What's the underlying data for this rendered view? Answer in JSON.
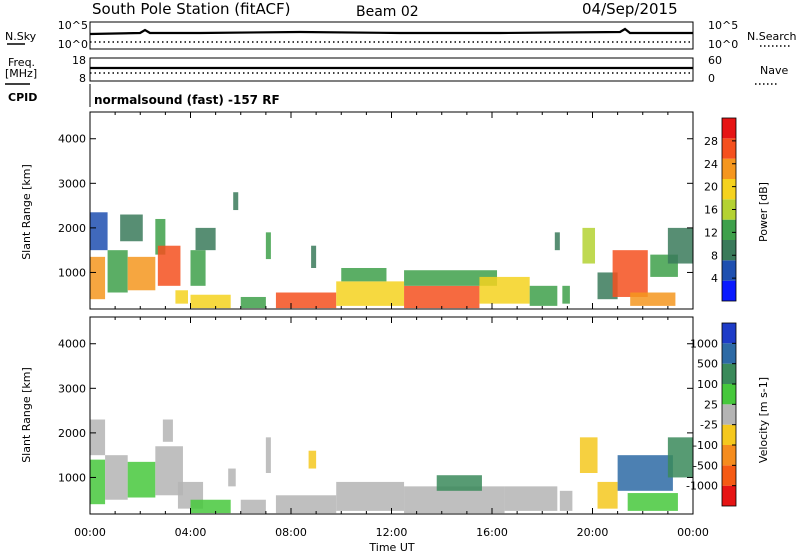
{
  "header": {
    "title": "South Pole Station (fitACF)",
    "beam": "Beam 02",
    "date": "04/Sep/2015"
  },
  "aux_panels": {
    "nsky_label": "N.Sky",
    "nsky_ticks": [
      "10^5",
      "10^0"
    ],
    "nsearch_label": "N.Search",
    "freq_label_top": "Freq.",
    "freq_label_unit": "[MHz]",
    "freq_ticks": [
      "18",
      "8"
    ],
    "nave_ticks": [
      "60",
      "0"
    ],
    "nave_label": "Nave",
    "cpid_label": "CPID",
    "cpid_text": "normalsound (fast) -157 RF"
  },
  "chart_data": [
    {
      "type": "heatmap",
      "name": "power-panel",
      "ylabel": "Slant Range [km]",
      "xlabel": "",
      "yticks": [
        "1000",
        "2000",
        "3000",
        "4000"
      ],
      "ylim": [
        180,
        4600
      ],
      "xlim": [
        0,
        24
      ],
      "colorbar": {
        "label": "Power [dB]",
        "ticks": [
          "28",
          "24",
          "20",
          "16",
          "12",
          "8",
          "4"
        ],
        "range": [
          0,
          32
        ],
        "colors": [
          "#0a1aff",
          "#1e4fb0",
          "#3a7a5a",
          "#3ea04a",
          "#b4d232",
          "#f5d21e",
          "#f5961e",
          "#f5501e",
          "#e61414"
        ]
      },
      "blocks": [
        {
          "t0": 0.0,
          "t1": 0.6,
          "r0": 400,
          "r1": 1350,
          "v": 22
        },
        {
          "t0": 0.0,
          "t1": 0.7,
          "r0": 1500,
          "r1": 2350,
          "v": 6
        },
        {
          "t0": 0.7,
          "t1": 1.5,
          "r0": 550,
          "r1": 1500,
          "v": 14
        },
        {
          "t0": 1.2,
          "t1": 2.1,
          "r0": 1700,
          "r1": 2300,
          "v": 8
        },
        {
          "t0": 1.5,
          "t1": 2.6,
          "r0": 600,
          "r1": 1350,
          "v": 24
        },
        {
          "t0": 2.6,
          "t1": 3.0,
          "r0": 1400,
          "r1": 2200,
          "v": 12
        },
        {
          "t0": 2.7,
          "t1": 3.6,
          "r0": 700,
          "r1": 1600,
          "v": 26
        },
        {
          "t0": 3.4,
          "t1": 3.9,
          "r0": 300,
          "r1": 600,
          "v": 18
        },
        {
          "t0": 4.0,
          "t1": 4.6,
          "r0": 700,
          "r1": 1500,
          "v": 12
        },
        {
          "t0": 4.2,
          "t1": 5.0,
          "r0": 1500,
          "r1": 2000,
          "v": 8
        },
        {
          "t0": 4.0,
          "t1": 5.6,
          "r0": 200,
          "r1": 500,
          "v": 20
        },
        {
          "t0": 5.7,
          "t1": 5.9,
          "r0": 2400,
          "r1": 2800,
          "v": 10
        },
        {
          "t0": 6.0,
          "t1": 7.0,
          "r0": 200,
          "r1": 450,
          "v": 14
        },
        {
          "t0": 7.0,
          "t1": 7.2,
          "r0": 1300,
          "r1": 1900,
          "v": 12
        },
        {
          "t0": 7.4,
          "t1": 9.8,
          "r0": 200,
          "r1": 550,
          "v": 28
        },
        {
          "t0": 8.8,
          "t1": 9.0,
          "r0": 1100,
          "r1": 1600,
          "v": 10
        },
        {
          "t0": 9.8,
          "t1": 12.5,
          "r0": 250,
          "r1": 800,
          "v": 18
        },
        {
          "t0": 10.0,
          "t1": 11.8,
          "r0": 800,
          "r1": 1100,
          "v": 12
        },
        {
          "t0": 12.5,
          "t1": 15.5,
          "r0": 200,
          "r1": 700,
          "v": 26
        },
        {
          "t0": 12.5,
          "t1": 16.2,
          "r0": 700,
          "r1": 1050,
          "v": 14
        },
        {
          "t0": 15.5,
          "t1": 17.5,
          "r0": 300,
          "r1": 900,
          "v": 20
        },
        {
          "t0": 17.5,
          "t1": 18.6,
          "r0": 250,
          "r1": 700,
          "v": 12
        },
        {
          "t0": 18.5,
          "t1": 18.7,
          "r0": 1500,
          "r1": 1900,
          "v": 10
        },
        {
          "t0": 18.8,
          "t1": 19.1,
          "r0": 300,
          "r1": 700,
          "v": 14
        },
        {
          "t0": 19.6,
          "t1": 20.1,
          "r0": 1200,
          "r1": 2000,
          "v": 16
        },
        {
          "t0": 20.2,
          "t1": 21.0,
          "r0": 400,
          "r1": 1000,
          "v": 8
        },
        {
          "t0": 20.8,
          "t1": 22.2,
          "r0": 450,
          "r1": 1500,
          "v": 28
        },
        {
          "t0": 21.5,
          "t1": 23.3,
          "r0": 250,
          "r1": 550,
          "v": 24
        },
        {
          "t0": 22.3,
          "t1": 23.4,
          "r0": 900,
          "r1": 1400,
          "v": 14
        },
        {
          "t0": 23.0,
          "t1": 24.0,
          "r0": 1200,
          "r1": 2000,
          "v": 8
        }
      ]
    },
    {
      "type": "heatmap",
      "name": "velocity-panel",
      "ylabel": "Slant Range [km]",
      "xlabel": "Time UT",
      "yticks": [
        "1000",
        "2000",
        "3000",
        "4000"
      ],
      "ylim": [
        180,
        4600
      ],
      "xlim": [
        0,
        24
      ],
      "xticks": [
        "00:00",
        "04:00",
        "08:00",
        "12:00",
        "16:00",
        "20:00",
        "00:00"
      ],
      "colorbar": {
        "label": "Velocity [m s-1]",
        "ticks": [
          "1000",
          "500",
          "100",
          "25",
          "-25",
          "-100",
          "-500",
          "-1000"
        ],
        "range": [
          -1200,
          1200
        ],
        "colors": [
          "#e61414",
          "#f55a14",
          "#f58c1e",
          "#f5c81e",
          "#b4b4b4",
          "#46c83c",
          "#3a8a5a",
          "#2d6aa5",
          "#1e3cc8"
        ]
      },
      "blocks": [
        {
          "t0": 0.0,
          "t1": 0.6,
          "r0": 400,
          "r1": 1400,
          "v": 150
        },
        {
          "t0": 0.0,
          "t1": 0.6,
          "r0": 1500,
          "r1": 2300,
          "v": -20
        },
        {
          "t0": 0.6,
          "t1": 1.5,
          "r0": 500,
          "r1": 1500,
          "v": 120
        },
        {
          "t0": 1.5,
          "t1": 2.6,
          "r0": 550,
          "r1": 1350,
          "v": 200
        },
        {
          "t0": 2.6,
          "t1": 3.7,
          "r0": 600,
          "r1": 1700,
          "v": 60
        },
        {
          "t0": 2.9,
          "t1": 3.3,
          "r0": 1800,
          "r1": 2300,
          "v": -30
        },
        {
          "t0": 3.5,
          "t1": 4.5,
          "r0": 300,
          "r1": 900,
          "v": 80
        },
        {
          "t0": 4.0,
          "t1": 5.6,
          "r0": 200,
          "r1": 500,
          "v": 150
        },
        {
          "t0": 5.5,
          "t1": 5.8,
          "r0": 800,
          "r1": 1200,
          "v": -110
        },
        {
          "t0": 6.0,
          "t1": 7.0,
          "r0": 200,
          "r1": 500,
          "v": 100
        },
        {
          "t0": 7.0,
          "t1": 7.2,
          "r0": 1100,
          "r1": 1900,
          "v": -80
        },
        {
          "t0": 7.4,
          "t1": 9.8,
          "r0": 200,
          "r1": 600,
          "v": 90
        },
        {
          "t0": 8.7,
          "t1": 9.0,
          "r0": 1200,
          "r1": 1600,
          "v": -200
        },
        {
          "t0": 9.8,
          "t1": 12.5,
          "r0": 250,
          "r1": 900,
          "v": 130
        },
        {
          "t0": 12.5,
          "t1": 16.5,
          "r0": 200,
          "r1": 800,
          "v": 110
        },
        {
          "t0": 13.8,
          "t1": 15.6,
          "r0": 700,
          "r1": 1050,
          "v": 600
        },
        {
          "t0": 16.5,
          "t1": 18.6,
          "r0": 250,
          "r1": 800,
          "v": 80
        },
        {
          "t0": 18.7,
          "t1": 19.2,
          "r0": 250,
          "r1": 700,
          "v": 60
        },
        {
          "t0": 19.5,
          "t1": 20.2,
          "r0": 1100,
          "r1": 1900,
          "v": -200
        },
        {
          "t0": 20.2,
          "t1": 21.0,
          "r0": 300,
          "r1": 900,
          "v": -300
        },
        {
          "t0": 21.0,
          "t1": 23.2,
          "r0": 700,
          "r1": 1500,
          "v": 700
        },
        {
          "t0": 21.4,
          "t1": 23.4,
          "r0": 250,
          "r1": 650,
          "v": 150
        },
        {
          "t0": 23.0,
          "t1": 24.0,
          "r0": 1000,
          "r1": 1900,
          "v": 400
        }
      ]
    }
  ]
}
